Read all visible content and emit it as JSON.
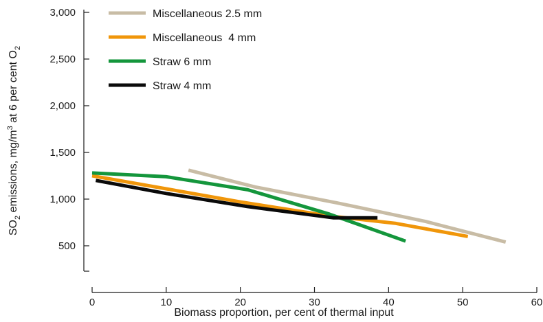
{
  "chart_data": {
    "type": "line",
    "title": "",
    "xlabel": "Biomass proportion, per cent of thermal input",
    "ylabel": {
      "p1": "SO",
      "sub1": "2",
      "p2": " emissions, mg/m",
      "sup": "3",
      "p3": " at 6 per cent O",
      "sub2": "2"
    },
    "xlim": [
      0,
      60
    ],
    "ylim": [
      250,
      3000
    ],
    "x_ticks": [
      0,
      10,
      20,
      30,
      40,
      50,
      60
    ],
    "x_tick_labels": [
      "0",
      "10",
      "20",
      "30",
      "40",
      "50",
      "60"
    ],
    "y_ticks": [
      500,
      1000,
      1500,
      2000,
      2500,
      3000
    ],
    "y_tick_labels": [
      "500",
      "1,000",
      "1,500",
      "2,000",
      "2,500",
      "3,000"
    ],
    "grid": false,
    "legend_position": "top-left",
    "series": [
      {
        "name": "Miscellaneous 2.5 mm",
        "color": "#c8bca5",
        "points": [
          [
            13,
            1310
          ],
          [
            22,
            1130
          ],
          [
            33,
            960
          ],
          [
            45,
            760
          ],
          [
            55.8,
            540
          ]
        ]
      },
      {
        "name": "Miscellaneous  4 mm",
        "color": "#f0960a",
        "points": [
          [
            0,
            1250
          ],
          [
            10,
            1110
          ],
          [
            20,
            970
          ],
          [
            32,
            820
          ],
          [
            41,
            740
          ],
          [
            50.7,
            600
          ]
        ]
      },
      {
        "name": "Straw 6 mm",
        "color": "#14963c",
        "points": [
          [
            0,
            1280
          ],
          [
            10,
            1240
          ],
          [
            21,
            1100
          ],
          [
            32,
            840
          ],
          [
            42.3,
            550
          ]
        ]
      },
      {
        "name": "Straw 4 mm",
        "color": "#0a0a0a",
        "points": [
          [
            0.5,
            1200
          ],
          [
            10,
            1060
          ],
          [
            21,
            920
          ],
          [
            32.5,
            800
          ],
          [
            38.5,
            800
          ]
        ]
      }
    ]
  }
}
